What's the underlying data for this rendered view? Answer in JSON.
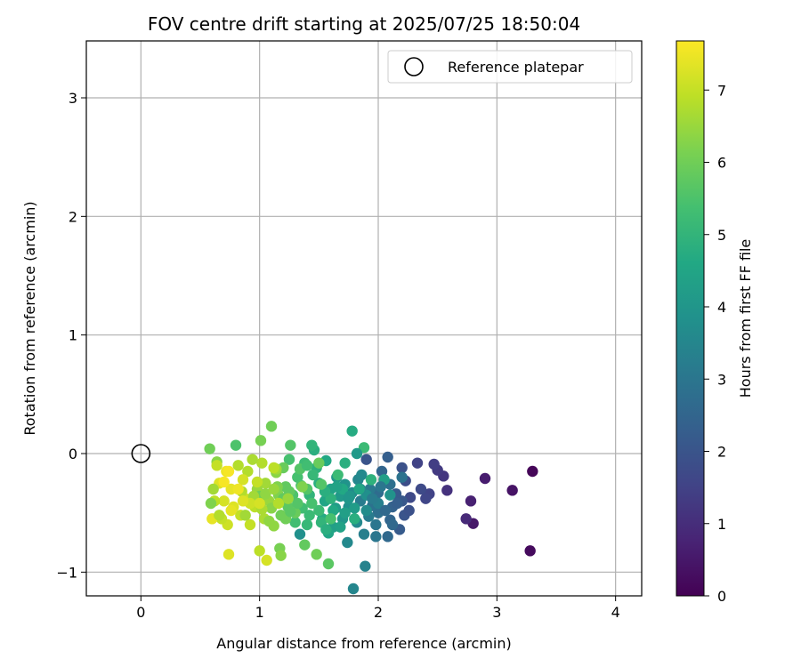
{
  "chart_data": {
    "type": "scatter",
    "title": "FOV centre drift starting at 2025/07/25 18:50:04",
    "xlabel": "Angular distance from reference (arcmin)",
    "ylabel": "Rotation from reference (arcmin)",
    "xlim": [
      -0.46,
      4.22
    ],
    "ylim": [
      -1.2,
      3.48
    ],
    "xticks": [
      0,
      1,
      2,
      3,
      4
    ],
    "yticks": [
      -1,
      0,
      1,
      2,
      3
    ],
    "grid": true,
    "legend": {
      "placement": "top-right",
      "entries": [
        "Reference platepar"
      ]
    },
    "reference_point": {
      "x": 0,
      "y": 0
    },
    "colorbar": {
      "label": "Hours from first FF file",
      "colormap": "viridis",
      "range": [
        0,
        7.68
      ],
      "ticks": [
        0,
        1,
        2,
        3,
        4,
        5,
        6,
        7
      ]
    },
    "points": [
      [
        3.3,
        -0.15,
        0.1
      ],
      [
        3.28,
        -0.82,
        0.2
      ],
      [
        3.13,
        -0.31,
        0.4
      ],
      [
        2.9,
        -0.21,
        0.6
      ],
      [
        2.8,
        -0.59,
        0.5
      ],
      [
        2.78,
        -0.4,
        0.7
      ],
      [
        2.74,
        -0.55,
        0.9
      ],
      [
        2.58,
        -0.31,
        1.1
      ],
      [
        2.55,
        -0.19,
        1.2
      ],
      [
        2.5,
        -0.14,
        1.3
      ],
      [
        2.47,
        -0.09,
        1.4
      ],
      [
        2.43,
        -0.34,
        1.5
      ],
      [
        2.4,
        -0.38,
        1.6
      ],
      [
        2.33,
        -0.08,
        1.5
      ],
      [
        2.27,
        -0.37,
        1.7
      ],
      [
        2.23,
        -0.23,
        1.8
      ],
      [
        2.2,
        -0.12,
        1.9
      ],
      [
        2.22,
        -0.52,
        2.0
      ],
      [
        2.2,
        -0.4,
        2.1
      ],
      [
        2.18,
        -0.64,
        2.2
      ],
      [
        2.08,
        -0.03,
        2.3
      ],
      [
        2.15,
        -0.34,
        2.2
      ],
      [
        2.12,
        -0.45,
        2.4
      ],
      [
        2.1,
        -0.56,
        2.5
      ],
      [
        2.08,
        -0.7,
        2.6
      ],
      [
        2.03,
        -0.15,
        2.5
      ],
      [
        2.0,
        -0.33,
        2.7
      ],
      [
        2.0,
        -0.5,
        2.8
      ],
      [
        1.98,
        -0.7,
        3.0
      ],
      [
        1.95,
        -0.44,
        2.9
      ],
      [
        1.93,
        -0.3,
        3.1
      ],
      [
        1.9,
        -0.05,
        2.0
      ],
      [
        1.92,
        -0.53,
        3.2
      ],
      [
        1.88,
        -0.68,
        3.3
      ],
      [
        1.89,
        -0.95,
        3.4
      ],
      [
        1.85,
        -0.4,
        3.2
      ],
      [
        1.83,
        -0.22,
        3.5
      ],
      [
        1.82,
        -0.58,
        3.6
      ],
      [
        1.79,
        -1.14,
        3.5
      ],
      [
        1.78,
        -0.33,
        3.7
      ],
      [
        1.75,
        -0.45,
        3.8
      ],
      [
        1.74,
        -0.75,
        3.6
      ],
      [
        1.72,
        -0.26,
        3.9
      ],
      [
        1.7,
        -0.55,
        4.0
      ],
      [
        1.68,
        -0.36,
        4.1
      ],
      [
        1.65,
        -0.2,
        4.0
      ],
      [
        1.64,
        -0.46,
        4.2
      ],
      [
        1.62,
        -0.62,
        4.3
      ],
      [
        1.6,
        -0.3,
        4.4
      ],
      [
        1.58,
        -0.67,
        4.5
      ],
      [
        1.56,
        -0.06,
        4.6
      ],
      [
        1.55,
        -0.4,
        4.5
      ],
      [
        1.53,
        -0.55,
        4.7
      ],
      [
        1.5,
        -0.25,
        4.8
      ],
      [
        1.48,
        -0.12,
        4.9
      ],
      [
        1.46,
        0.03,
        4.8
      ],
      [
        1.44,
        0.07,
        5.0
      ],
      [
        1.42,
        -0.35,
        5.0
      ],
      [
        1.4,
        -0.6,
        5.1
      ],
      [
        1.38,
        -0.08,
        5.2
      ],
      [
        1.36,
        -0.46,
        5.3
      ],
      [
        1.34,
        -0.68,
        3.8
      ],
      [
        1.32,
        -0.2,
        5.4
      ],
      [
        1.3,
        -0.58,
        5.3
      ],
      [
        1.28,
        -0.35,
        5.5
      ],
      [
        1.26,
        0.07,
        5.6
      ],
      [
        1.25,
        -0.05,
        5.4
      ],
      [
        1.24,
        -0.45,
        5.7
      ],
      [
        1.22,
        -0.28,
        5.8
      ],
      [
        1.2,
        -0.12,
        5.9
      ],
      [
        1.18,
        -0.52,
        6.0
      ],
      [
        1.17,
        -0.8,
        6.1
      ],
      [
        1.16,
        -0.35,
        6.2
      ],
      [
        1.14,
        -0.16,
        6.3
      ],
      [
        1.12,
        -0.61,
        6.4
      ],
      [
        1.1,
        0.23,
        6.0
      ],
      [
        1.08,
        -0.4,
        6.5
      ],
      [
        1.06,
        -0.9,
        7.2
      ],
      [
        1.05,
        -0.25,
        6.6
      ],
      [
        1.04,
        -0.55,
        6.7
      ],
      [
        1.02,
        -0.08,
        6.8
      ],
      [
        1.01,
        0.11,
        6.1
      ],
      [
        1.0,
        -0.82,
        6.9
      ],
      [
        0.98,
        -0.3,
        6.5
      ],
      [
        0.96,
        -0.45,
        6.9
      ],
      [
        0.94,
        -0.05,
        6.7
      ],
      [
        0.92,
        -0.6,
        7.0
      ],
      [
        0.9,
        -0.15,
        6.8
      ],
      [
        0.88,
        -0.38,
        7.1
      ],
      [
        0.86,
        -0.22,
        7.2
      ],
      [
        0.84,
        -0.52,
        7.0
      ],
      [
        0.82,
        -0.1,
        6.8
      ],
      [
        0.8,
        0.07,
        5.5
      ],
      [
        0.78,
        -0.45,
        7.3
      ],
      [
        0.76,
        -0.3,
        7.4
      ],
      [
        0.74,
        -0.85,
        7.3
      ],
      [
        0.73,
        -0.6,
        7.1
      ],
      [
        0.72,
        -0.15,
        7.5
      ],
      [
        0.7,
        -0.4,
        7.2
      ],
      [
        0.68,
        -0.55,
        7.0
      ],
      [
        0.66,
        -0.25,
        7.3
      ],
      [
        0.64,
        -0.07,
        6.3
      ],
      [
        0.62,
        -0.4,
        6.9
      ],
      [
        0.61,
        -0.3,
        6.6
      ],
      [
        0.6,
        -0.55,
        7.4
      ],
      [
        0.58,
        0.04,
        6.0
      ],
      [
        0.59,
        -0.42,
        6.2
      ],
      [
        1.0,
        -0.36,
        6.0
      ],
      [
        1.1,
        -0.46,
        6.3
      ],
      [
        1.2,
        -0.38,
        5.8
      ],
      [
        1.3,
        -0.5,
        5.9
      ],
      [
        1.4,
        -0.3,
        5.6
      ],
      [
        1.5,
        -0.48,
        5.2
      ],
      [
        1.6,
        -0.38,
        4.9
      ],
      [
        1.7,
        -0.3,
        4.6
      ],
      [
        1.8,
        -0.46,
        4.2
      ],
      [
        1.9,
        -0.35,
        3.8
      ],
      [
        2.0,
        -0.42,
        3.3
      ],
      [
        2.1,
        -0.26,
        2.8
      ],
      [
        1.45,
        -0.18,
        5.1
      ],
      [
        1.35,
        -0.27,
        5.5
      ],
      [
        1.25,
        -0.32,
        5.8
      ],
      [
        1.15,
        -0.28,
        6.2
      ],
      [
        1.05,
        -0.34,
        6.4
      ],
      [
        0.95,
        -0.36,
        6.6
      ],
      [
        0.85,
        -0.32,
        6.8
      ],
      [
        1.55,
        -0.32,
        4.8
      ],
      [
        1.65,
        -0.28,
        4.4
      ],
      [
        1.75,
        -0.38,
        4.0
      ],
      [
        1.85,
        -0.3,
        3.6
      ],
      [
        1.95,
        -0.38,
        3.2
      ],
      [
        1.62,
        -0.48,
        4.6
      ],
      [
        1.72,
        -0.5,
        4.3
      ],
      [
        1.52,
        -0.58,
        5.0
      ],
      [
        1.42,
        -0.52,
        5.2
      ],
      [
        1.32,
        -0.42,
        5.6
      ],
      [
        1.22,
        -0.55,
        6.0
      ],
      [
        1.12,
        -0.3,
        6.5
      ],
      [
        1.02,
        -0.47,
        6.7
      ],
      [
        0.92,
        -0.42,
        7.1
      ],
      [
        1.78,
        0.19,
        4.7
      ],
      [
        1.88,
        0.05,
        5.2
      ],
      [
        1.82,
        0.0,
        4.1
      ],
      [
        1.58,
        -0.93,
        5.7
      ],
      [
        1.48,
        -0.85,
        6.0
      ],
      [
        1.18,
        -0.86,
        6.3
      ],
      [
        1.38,
        -0.77,
        5.8
      ],
      [
        2.05,
        -0.22,
        4.3
      ],
      [
        1.98,
        -0.6,
        3.0
      ],
      [
        2.12,
        -0.6,
        2.6
      ],
      [
        1.68,
        -0.62,
        4.4
      ],
      [
        1.26,
        -0.49,
        5.7
      ],
      [
        0.66,
        -0.52,
        6.8
      ],
      [
        0.64,
        -0.1,
        7.0
      ],
      [
        0.88,
        -0.52,
        6.6
      ],
      [
        1.08,
        -0.57,
        6.4
      ],
      [
        1.14,
        -0.13,
        6.6
      ],
      [
        1.34,
        -0.13,
        5.6
      ],
      [
        1.44,
        -0.42,
        5.4
      ],
      [
        1.56,
        -0.64,
        4.8
      ],
      [
        1.76,
        -0.36,
        4.0
      ],
      [
        1.86,
        -0.18,
        3.6
      ],
      [
        2.02,
        -0.28,
        3.0
      ],
      [
        2.26,
        -0.48,
        1.9
      ],
      [
        2.36,
        -0.3,
        1.7
      ],
      [
        0.76,
        -0.48,
        7.4
      ],
      [
        0.7,
        -0.24,
        7.6
      ],
      [
        0.86,
        -0.4,
        7.3
      ],
      [
        0.98,
        -0.24,
        7.0
      ],
      [
        1.16,
        -0.42,
        6.8
      ],
      [
        1.36,
        -0.28,
        6.2
      ],
      [
        1.5,
        -0.08,
        5.9
      ],
      [
        1.66,
        -0.18,
        5.2
      ],
      [
        1.84,
        -0.3,
        4.5
      ],
      [
        1.72,
        -0.08,
        4.8
      ],
      [
        1.9,
        -0.48,
        3.7
      ],
      [
        2.06,
        -0.48,
        2.6
      ],
      [
        2.16,
        -0.42,
        2.3
      ],
      [
        0.74,
        -0.15,
        7.6
      ],
      [
        0.82,
        -0.3,
        7.5
      ],
      [
        1.0,
        -0.42,
        7.2
      ],
      [
        1.12,
        -0.12,
        6.9
      ],
      [
        1.24,
        -0.38,
        6.5
      ],
      [
        1.4,
        -0.1,
        5.3
      ],
      [
        1.52,
        -0.26,
        5.6
      ],
      [
        1.6,
        -0.55,
        5.4
      ],
      [
        1.8,
        -0.55,
        4.8
      ],
      [
        1.94,
        -0.22,
        4.9
      ],
      [
        2.1,
        -0.35,
        3.9
      ],
      [
        2.2,
        -0.2,
        2.9
      ]
    ]
  }
}
